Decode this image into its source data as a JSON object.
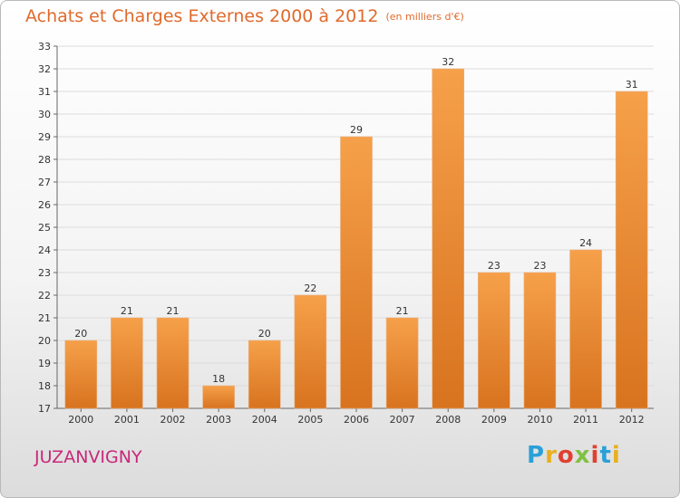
{
  "header": {
    "title": "Achats et Charges Externes 2000 à 2012",
    "unit": "(en milliers d'€)"
  },
  "footer": {
    "place": "JUZANVIGNY",
    "logo_letters": [
      "P",
      "r",
      "o",
      "x",
      "i",
      "t",
      "i"
    ],
    "logo_colors": [
      "#2aa0d8",
      "#e8b020",
      "#e04030",
      "#80c040",
      "#e04030",
      "#2aa0d8",
      "#e8b020"
    ]
  },
  "chart_data": {
    "type": "bar",
    "categories": [
      "2000",
      "2001",
      "2002",
      "2003",
      "2004",
      "2005",
      "2006",
      "2007",
      "2008",
      "2009",
      "2010",
      "2011",
      "2012"
    ],
    "values": [
      20,
      21,
      21,
      18,
      20,
      22,
      29,
      21,
      32,
      23,
      23,
      24,
      31
    ],
    "ylim": [
      17,
      33
    ],
    "yticks": [
      17,
      18,
      19,
      20,
      21,
      22,
      23,
      24,
      25,
      26,
      27,
      28,
      29,
      30,
      31,
      32,
      33
    ],
    "grid": true,
    "bar_color_light": "#f6a04a",
    "bar_color_dark": "#d8731f"
  }
}
